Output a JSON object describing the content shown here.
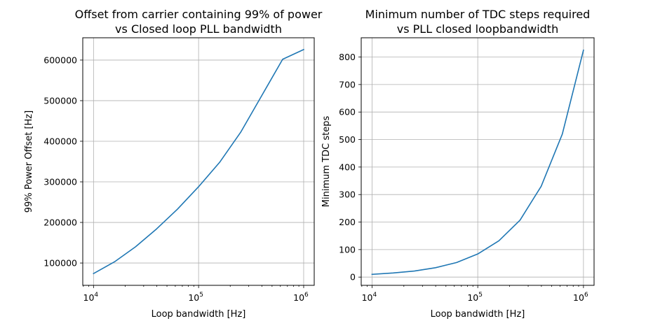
{
  "chart_data": [
    {
      "type": "line",
      "title_line1": "Offset from carrier containing 99% of power",
      "title_line2": "vs Closed loop PLL bandwidth",
      "xlabel": "Loop bandwidth [Hz]",
      "ylabel": "99% Power Offset [Hz]",
      "xscale": "log",
      "xlim": [
        7900,
        1260000
      ],
      "ylim": [
        45000,
        655000
      ],
      "grid": true,
      "x_ticks": [
        {
          "value": 10000,
          "base": "10",
          "exp": "4"
        },
        {
          "value": 100000,
          "base": "10",
          "exp": "5"
        },
        {
          "value": 1000000,
          "base": "10",
          "exp": "6"
        }
      ],
      "y_ticks": [
        {
          "value": 100000,
          "label": "100000"
        },
        {
          "value": 200000,
          "label": "200000"
        },
        {
          "value": 300000,
          "label": "300000"
        },
        {
          "value": 400000,
          "label": "400000"
        },
        {
          "value": 500000,
          "label": "500000"
        },
        {
          "value": 600000,
          "label": "600000"
        }
      ],
      "x": [
        10000,
        15849,
        25119,
        39811,
        63096,
        100000,
        158489,
        251189,
        398107,
        630957,
        1000000
      ],
      "y": [
        74000,
        103000,
        140000,
        184000,
        233000,
        288000,
        348000,
        422000,
        512000,
        602000,
        626000
      ]
    },
    {
      "type": "line",
      "title_line1": "Minimum number of TDC steps required",
      "title_line2": "vs PLL closed loopbandwidth",
      "xlabel": "Loop bandwidth [Hz]",
      "ylabel": "Minimum TDC steps",
      "xscale": "log",
      "xlim": [
        7900,
        1260000
      ],
      "ylim": [
        -30,
        870
      ],
      "grid": true,
      "x_ticks": [
        {
          "value": 10000,
          "base": "10",
          "exp": "4"
        },
        {
          "value": 100000,
          "base": "10",
          "exp": "5"
        },
        {
          "value": 1000000,
          "base": "10",
          "exp": "6"
        }
      ],
      "y_ticks": [
        {
          "value": 0,
          "label": "0"
        },
        {
          "value": 100,
          "label": "100"
        },
        {
          "value": 200,
          "label": "200"
        },
        {
          "value": 300,
          "label": "300"
        },
        {
          "value": 400,
          "label": "400"
        },
        {
          "value": 500,
          "label": "500"
        },
        {
          "value": 600,
          "label": "600"
        },
        {
          "value": 700,
          "label": "700"
        },
        {
          "value": 800,
          "label": "800"
        }
      ],
      "x": [
        10000,
        15849,
        25119,
        39811,
        63096,
        100000,
        158489,
        251189,
        398107,
        630957,
        1000000
      ],
      "y": [
        10,
        15,
        22,
        34,
        53,
        84,
        132,
        207,
        330,
        520,
        825
      ]
    }
  ],
  "colors": {
    "series": "#1f77b4",
    "grid": "#b0b0b0",
    "frame": "#000000"
  }
}
